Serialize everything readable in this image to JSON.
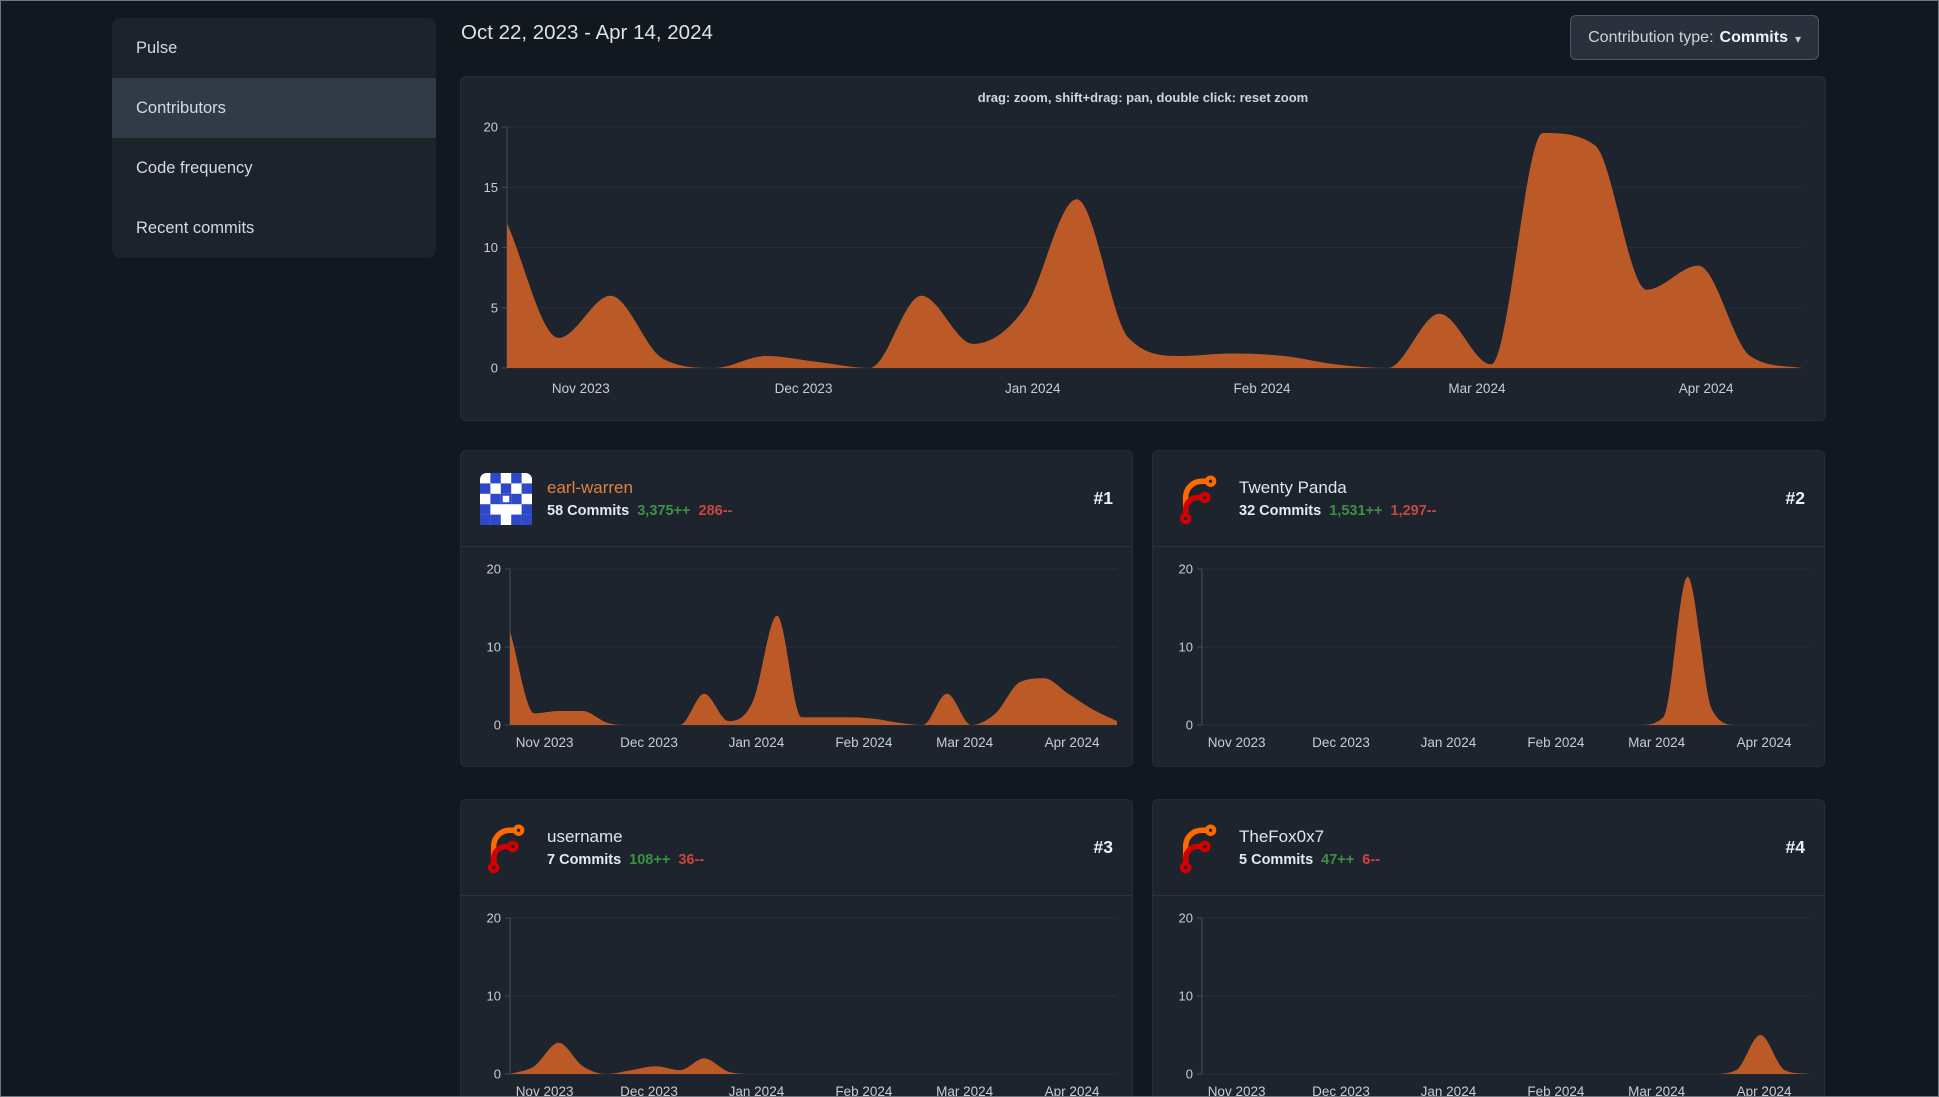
{
  "header": {
    "date_range": "Oct 22, 2023 - Apr 14, 2024",
    "contribution_type_label": "Contribution type:",
    "contribution_type_value": "Commits"
  },
  "sidebar": {
    "items": [
      {
        "label": "Pulse",
        "active": false
      },
      {
        "label": "Contributors",
        "active": true
      },
      {
        "label": "Code frequency",
        "active": false
      },
      {
        "label": "Recent commits",
        "active": false
      }
    ]
  },
  "main_chart_hint": "drag: zoom, shift+drag: pan, double click: reset zoom",
  "colors": {
    "page_bg": "#131820",
    "card_bg": "#1d242e",
    "area_fill": "#bc5a27",
    "additions_green": "#3c9142",
    "deletions_red": "#c8473f",
    "link_orange": "#e0823d",
    "grid_line": "#272f3a",
    "axis_line": "#434c59",
    "tick_text": "#c6cdd6"
  },
  "contributors": [
    {
      "name": "earl-warren",
      "name_color": "#e0823d",
      "commits": "58 Commits",
      "additions": "3,375++",
      "deletions": "286--",
      "rank": "#1"
    },
    {
      "name": "Twenty Panda",
      "name_color": "#dfe5eb",
      "commits": "32 Commits",
      "additions": "1,531++",
      "deletions": "1,297--",
      "rank": "#2"
    },
    {
      "name": "username",
      "name_color": "#dfe5eb",
      "commits": "7 Commits",
      "additions": "108++",
      "deletions": "36--",
      "rank": "#3"
    },
    {
      "name": "TheFox0x7",
      "name_color": "#dfe5eb",
      "commits": "5 Commits",
      "additions": "47++",
      "deletions": "6--",
      "rank": "#4"
    }
  ],
  "chart_data": {
    "type": "area",
    "x_range": [
      "Oct 22, 2023",
      "Apr 14, 2024"
    ],
    "x_unit": "week",
    "months": [
      "Nov 2023",
      "Dec 2023",
      "Jan 2024",
      "Feb 2024",
      "Mar 2024",
      "Apr 2024"
    ],
    "month_fracs": [
      0.057,
      0.229,
      0.406,
      0.583,
      0.749,
      0.926
    ],
    "grid": true,
    "legend": false,
    "charts": [
      {
        "name": "overall commits per week",
        "ylim": [
          0,
          20
        ],
        "yticks": [
          0,
          5,
          10,
          15,
          20
        ],
        "values": [
          12,
          2.5,
          6,
          0.8,
          0,
          1,
          0.5,
          0,
          6,
          2,
          5,
          14,
          2.5,
          1,
          1.2,
          1,
          0.3,
          0,
          4.5,
          0.3,
          19.5,
          18.5,
          6.5,
          8.5,
          1,
          0
        ]
      },
      {
        "name": "earl-warren commits per week",
        "ylim": [
          0,
          20
        ],
        "yticks": [
          0,
          10,
          20
        ],
        "values": [
          12,
          1.5,
          1.8,
          1.8,
          0.3,
          0,
          0,
          0,
          4,
          0.5,
          3,
          14,
          1,
          1,
          1,
          0.8,
          0.3,
          0,
          4,
          0,
          1.5,
          5.5,
          6,
          4,
          2,
          0.5
        ]
      },
      {
        "name": "Twenty Panda commits per week",
        "ylim": [
          0,
          20
        ],
        "yticks": [
          0,
          10,
          20
        ],
        "values": [
          0,
          0,
          0,
          0,
          0,
          0,
          0,
          0,
          0,
          0,
          0,
          0,
          0,
          0,
          0,
          0,
          0,
          0,
          0,
          1,
          19,
          2,
          0,
          0,
          0,
          0
        ]
      },
      {
        "name": "username commits per week",
        "ylim": [
          0,
          20
        ],
        "yticks": [
          0,
          10,
          20
        ],
        "values": [
          0,
          1,
          4,
          1,
          0,
          0.5,
          1,
          0.5,
          2,
          0.3,
          0,
          0,
          0,
          0,
          0,
          0,
          0,
          0,
          0,
          0,
          0,
          0,
          0,
          0,
          0,
          0
        ]
      },
      {
        "name": "TheFox0x7 commits per week",
        "ylim": [
          0,
          20
        ],
        "yticks": [
          0,
          10,
          20
        ],
        "values": [
          0,
          0,
          0,
          0,
          0,
          0,
          0,
          0,
          0,
          0,
          0,
          0,
          0,
          0,
          0,
          0,
          0,
          0,
          0,
          0,
          0,
          0,
          0.5,
          5,
          0.5,
          0
        ]
      }
    ]
  }
}
